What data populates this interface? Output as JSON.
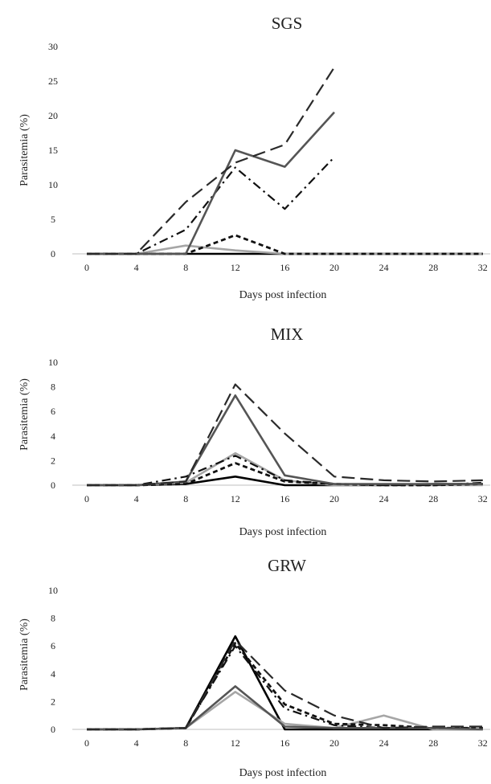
{
  "chart_data": [
    {
      "type": "line",
      "title": "SGS",
      "xlabel": "Days post infection",
      "ylabel": "Parasitemia (%)",
      "ylim": [
        0,
        30
      ],
      "yticks": [
        "0",
        "5",
        "10",
        "15",
        "20",
        "25",
        "30"
      ],
      "categories": [
        "0",
        "4",
        "8",
        "12",
        "16",
        "20",
        "24",
        "28",
        "32"
      ],
      "grid": false,
      "series": [
        {
          "style": "long-dash-black",
          "values": [
            0,
            0,
            7.5,
            13.2,
            15.8,
            27,
            null,
            null,
            null
          ]
        },
        {
          "style": "solid-darkgray",
          "values": [
            0,
            0,
            0,
            15,
            12.6,
            20.5,
            null,
            null,
            null
          ]
        },
        {
          "style": "dash-dot-black",
          "values": [
            0,
            0,
            3.5,
            12.5,
            6.5,
            14,
            null,
            null,
            null
          ]
        },
        {
          "style": "short-dash-black",
          "values": [
            0,
            0,
            0,
            2.7,
            0,
            0,
            0,
            0,
            0
          ]
        },
        {
          "style": "solid-lightgray",
          "values": [
            0,
            0,
            1.2,
            0.5,
            0,
            0,
            0,
            0,
            0
          ]
        },
        {
          "style": "solid-black",
          "values": [
            0,
            0,
            0,
            0,
            0,
            0,
            0,
            0,
            0
          ]
        }
      ]
    },
    {
      "type": "line",
      "title": "MIX",
      "xlabel": "Days post infection",
      "ylabel": "Parasitemia (%)",
      "ylim": [
        0,
        10
      ],
      "yticks": [
        "0",
        "2",
        "4",
        "6",
        "8",
        "10"
      ],
      "categories": [
        "0",
        "4",
        "8",
        "12",
        "16",
        "20",
        "24",
        "28",
        "32"
      ],
      "grid": false,
      "series": [
        {
          "style": "long-dash-black",
          "values": [
            0,
            0,
            0.3,
            8.2,
            4.2,
            0.7,
            0.4,
            0.3,
            0.4
          ]
        },
        {
          "style": "solid-darkgray",
          "values": [
            0,
            0,
            0.3,
            7.3,
            0.8,
            0.1,
            0.1,
            0.1,
            0.1
          ]
        },
        {
          "style": "dash-dot-black",
          "values": [
            0,
            0,
            0.7,
            2.4,
            0.4,
            0.1,
            0,
            0,
            0.2
          ]
        },
        {
          "style": "short-dash-black",
          "values": [
            0,
            0,
            0.1,
            1.8,
            0.3,
            0.1,
            0,
            0,
            0.1
          ]
        },
        {
          "style": "solid-lightgray",
          "values": [
            0,
            0,
            0.2,
            2.6,
            0.4,
            0,
            0,
            0,
            0
          ]
        },
        {
          "style": "solid-black",
          "values": [
            0,
            0,
            0.1,
            0.7,
            0,
            0,
            0,
            0.1,
            0.1
          ]
        }
      ]
    },
    {
      "type": "line",
      "title": "GRW",
      "xlabel": "Days post infection",
      "ylabel": "Parasitemia (%)",
      "ylim": [
        0,
        10
      ],
      "yticks": [
        "0",
        "2",
        "4",
        "6",
        "8",
        "10"
      ],
      "categories": [
        "0",
        "4",
        "8",
        "12",
        "16",
        "20",
        "24",
        "28",
        "32"
      ],
      "grid": false,
      "series": [
        {
          "style": "long-dash-black",
          "values": [
            0,
            0,
            0.1,
            6.4,
            2.8,
            1.0,
            0.1,
            0.2,
            0.2
          ]
        },
        {
          "style": "solid-darkgray",
          "values": [
            0,
            0,
            0.1,
            3.1,
            0.2,
            0.1,
            0.1,
            0.1,
            0
          ]
        },
        {
          "style": "dash-dot-black",
          "values": [
            0,
            0,
            0.1,
            6.0,
            1.5,
            0.3,
            0.1,
            0.1,
            0.1
          ]
        },
        {
          "style": "short-dash-black",
          "values": [
            0,
            0,
            0.1,
            6.2,
            1.8,
            0.4,
            0.3,
            0.1,
            0.1
          ]
        },
        {
          "style": "solid-lightgray",
          "values": [
            0,
            0,
            0.1,
            2.7,
            0.4,
            0.1,
            1.0,
            0,
            0
          ]
        },
        {
          "style": "solid-black",
          "values": [
            0,
            0,
            0.1,
            6.7,
            0,
            0,
            0,
            0,
            0
          ]
        }
      ]
    }
  ]
}
